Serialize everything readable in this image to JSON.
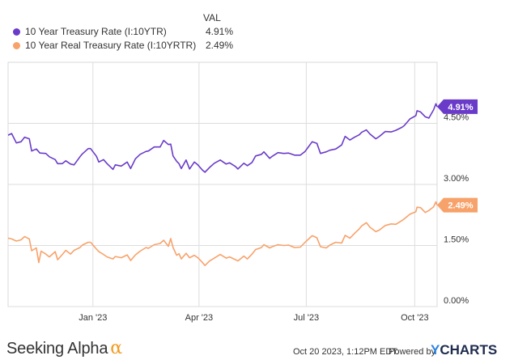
{
  "legend": {
    "header": "VAL",
    "items": [
      {
        "name": "10 Year Treasury Rate (I:10YTR)",
        "value": "4.91%",
        "color": "#6a3bc9"
      },
      {
        "name": "10 Year Real Treasury Rate (I:10YRTR)",
        "value": "2.49%",
        "color": "#f7a26a"
      }
    ]
  },
  "footer": {
    "brand": "Seeking Alpha",
    "brand_mark": "α",
    "date": "Oct 20 2023, 1:12PM EDT.",
    "powered": "Powered by",
    "ycharts_y": "Y",
    "ycharts_rest": "CHARTS"
  },
  "chart_data": {
    "type": "line",
    "x_start": "2022-10-21",
    "x_end": "2023-10-20",
    "xticks": [
      {
        "date": "2023-01-01",
        "label": "Jan '23"
      },
      {
        "date": "2023-04-01",
        "label": "Apr '23"
      },
      {
        "date": "2023-07-01",
        "label": "Jul '23"
      },
      {
        "date": "2023-10-01",
        "label": "Oct '23"
      }
    ],
    "ylim": [
      0,
      6
    ],
    "yticks": [
      {
        "value": 0,
        "label": "0.00%"
      },
      {
        "value": 1.5,
        "label": "1.50%"
      },
      {
        "value": 3.0,
        "label": "3.00%"
      },
      {
        "value": 4.5,
        "label": "4.50%"
      }
    ],
    "grid": true,
    "series": [
      {
        "name": "10 Year Treasury Rate (I:10YTR)",
        "color": "#6a3bc9",
        "end_label": "4.91%",
        "points": [
          [
            "2022-10-21",
            4.21
          ],
          [
            "2022-10-24",
            4.25
          ],
          [
            "2022-10-28",
            4.02
          ],
          [
            "2022-11-01",
            4.05
          ],
          [
            "2022-11-04",
            4.16
          ],
          [
            "2022-11-08",
            4.12
          ],
          [
            "2022-11-10",
            3.82
          ],
          [
            "2022-11-14",
            3.87
          ],
          [
            "2022-11-17",
            3.77
          ],
          [
            "2022-11-22",
            3.76
          ],
          [
            "2022-11-25",
            3.68
          ],
          [
            "2022-11-30",
            3.61
          ],
          [
            "2022-12-02",
            3.51
          ],
          [
            "2022-12-06",
            3.51
          ],
          [
            "2022-12-09",
            3.58
          ],
          [
            "2022-12-13",
            3.5
          ],
          [
            "2022-12-16",
            3.48
          ],
          [
            "2022-12-21",
            3.68
          ],
          [
            "2022-12-23",
            3.75
          ],
          [
            "2022-12-28",
            3.88
          ],
          [
            "2022-12-30",
            3.88
          ],
          [
            "2023-01-04",
            3.69
          ],
          [
            "2023-01-06",
            3.55
          ],
          [
            "2023-01-10",
            3.61
          ],
          [
            "2023-01-13",
            3.51
          ],
          [
            "2023-01-18",
            3.37
          ],
          [
            "2023-01-20",
            3.48
          ],
          [
            "2023-01-25",
            3.45
          ],
          [
            "2023-01-30",
            3.55
          ],
          [
            "2023-02-02",
            3.39
          ],
          [
            "2023-02-06",
            3.63
          ],
          [
            "2023-02-10",
            3.74
          ],
          [
            "2023-02-15",
            3.81
          ],
          [
            "2023-02-17",
            3.82
          ],
          [
            "2023-02-22",
            3.92
          ],
          [
            "2023-02-27",
            3.92
          ],
          [
            "2023-03-02",
            4.08
          ],
          [
            "2023-03-06",
            3.98
          ],
          [
            "2023-03-08",
            3.99
          ],
          [
            "2023-03-10",
            3.7
          ],
          [
            "2023-03-13",
            3.57
          ],
          [
            "2023-03-15",
            3.51
          ],
          [
            "2023-03-17",
            3.39
          ],
          [
            "2023-03-21",
            3.6
          ],
          [
            "2023-03-24",
            3.38
          ],
          [
            "2023-03-28",
            3.55
          ],
          [
            "2023-03-31",
            3.48
          ],
          [
            "2023-04-04",
            3.35
          ],
          [
            "2023-04-06",
            3.3
          ],
          [
            "2023-04-10",
            3.42
          ],
          [
            "2023-04-14",
            3.52
          ],
          [
            "2023-04-19",
            3.6
          ],
          [
            "2023-04-24",
            3.5
          ],
          [
            "2023-04-27",
            3.53
          ],
          [
            "2023-05-02",
            3.44
          ],
          [
            "2023-05-04",
            3.38
          ],
          [
            "2023-05-09",
            3.52
          ],
          [
            "2023-05-12",
            3.46
          ],
          [
            "2023-05-16",
            3.54
          ],
          [
            "2023-05-19",
            3.7
          ],
          [
            "2023-05-24",
            3.74
          ],
          [
            "2023-05-26",
            3.8
          ],
          [
            "2023-05-31",
            3.64
          ],
          [
            "2023-06-02",
            3.69
          ],
          [
            "2023-06-07",
            3.78
          ],
          [
            "2023-06-12",
            3.76
          ],
          [
            "2023-06-16",
            3.77
          ],
          [
            "2023-06-21",
            3.72
          ],
          [
            "2023-06-26",
            3.72
          ],
          [
            "2023-06-30",
            3.81
          ],
          [
            "2023-07-06",
            4.05
          ],
          [
            "2023-07-10",
            4.01
          ],
          [
            "2023-07-13",
            3.76
          ],
          [
            "2023-07-18",
            3.8
          ],
          [
            "2023-07-21",
            3.84
          ],
          [
            "2023-07-26",
            3.87
          ],
          [
            "2023-07-31",
            3.97
          ],
          [
            "2023-08-03",
            4.18
          ],
          [
            "2023-08-07",
            4.09
          ],
          [
            "2023-08-11",
            4.16
          ],
          [
            "2023-08-15",
            4.22
          ],
          [
            "2023-08-17",
            4.28
          ],
          [
            "2023-08-21",
            4.34
          ],
          [
            "2023-08-24",
            4.24
          ],
          [
            "2023-08-29",
            4.12
          ],
          [
            "2023-09-01",
            4.18
          ],
          [
            "2023-09-06",
            4.3
          ],
          [
            "2023-09-11",
            4.29
          ],
          [
            "2023-09-15",
            4.33
          ],
          [
            "2023-09-20",
            4.4
          ],
          [
            "2023-09-22",
            4.44
          ],
          [
            "2023-09-27",
            4.61
          ],
          [
            "2023-10-02",
            4.69
          ],
          [
            "2023-10-03",
            4.81
          ],
          [
            "2023-10-06",
            4.78
          ],
          [
            "2023-10-10",
            4.66
          ],
          [
            "2023-10-13",
            4.63
          ],
          [
            "2023-10-17",
            4.83
          ],
          [
            "2023-10-19",
            4.98
          ],
          [
            "2023-10-20",
            4.91
          ]
        ]
      },
      {
        "name": "10 Year Real Treasury Rate (I:10YRTR)",
        "color": "#f7a26a",
        "end_label": "2.49%",
        "points": [
          [
            "2022-10-21",
            1.68
          ],
          [
            "2022-10-24",
            1.66
          ],
          [
            "2022-10-28",
            1.61
          ],
          [
            "2022-11-01",
            1.64
          ],
          [
            "2022-11-04",
            1.72
          ],
          [
            "2022-11-08",
            1.66
          ],
          [
            "2022-11-10",
            1.37
          ],
          [
            "2022-11-14",
            1.44
          ],
          [
            "2022-11-16",
            1.08
          ],
          [
            "2022-11-18",
            1.36
          ],
          [
            "2022-11-22",
            1.29
          ],
          [
            "2022-11-25",
            1.22
          ],
          [
            "2022-11-30",
            1.35
          ],
          [
            "2022-12-02",
            1.15
          ],
          [
            "2022-12-06",
            1.28
          ],
          [
            "2022-12-09",
            1.38
          ],
          [
            "2022-12-13",
            1.29
          ],
          [
            "2022-12-16",
            1.38
          ],
          [
            "2022-12-21",
            1.45
          ],
          [
            "2022-12-23",
            1.51
          ],
          [
            "2022-12-28",
            1.58
          ],
          [
            "2022-12-30",
            1.58
          ],
          [
            "2023-01-04",
            1.41
          ],
          [
            "2023-01-06",
            1.35
          ],
          [
            "2023-01-10",
            1.28
          ],
          [
            "2023-01-13",
            1.22
          ],
          [
            "2023-01-18",
            1.17
          ],
          [
            "2023-01-20",
            1.23
          ],
          [
            "2023-01-25",
            1.2
          ],
          [
            "2023-01-30",
            1.27
          ],
          [
            "2023-02-02",
            1.13
          ],
          [
            "2023-02-06",
            1.27
          ],
          [
            "2023-02-10",
            1.36
          ],
          [
            "2023-02-15",
            1.45
          ],
          [
            "2023-02-17",
            1.43
          ],
          [
            "2023-02-22",
            1.52
          ],
          [
            "2023-02-27",
            1.55
          ],
          [
            "2023-03-02",
            1.63
          ],
          [
            "2023-03-06",
            1.48
          ],
          [
            "2023-03-08",
            1.67
          ],
          [
            "2023-03-10",
            1.45
          ],
          [
            "2023-03-13",
            1.26
          ],
          [
            "2023-03-15",
            1.3
          ],
          [
            "2023-03-17",
            1.17
          ],
          [
            "2023-03-21",
            1.31
          ],
          [
            "2023-03-24",
            1.2
          ],
          [
            "2023-03-28",
            1.26
          ],
          [
            "2023-03-31",
            1.2
          ],
          [
            "2023-04-04",
            1.08
          ],
          [
            "2023-04-06",
            1.01
          ],
          [
            "2023-04-10",
            1.12
          ],
          [
            "2023-04-14",
            1.19
          ],
          [
            "2023-04-19",
            1.28
          ],
          [
            "2023-04-24",
            1.19
          ],
          [
            "2023-04-27",
            1.22
          ],
          [
            "2023-05-02",
            1.15
          ],
          [
            "2023-05-04",
            1.12
          ],
          [
            "2023-05-09",
            1.24
          ],
          [
            "2023-05-12",
            1.17
          ],
          [
            "2023-05-16",
            1.29
          ],
          [
            "2023-05-19",
            1.4
          ],
          [
            "2023-05-24",
            1.45
          ],
          [
            "2023-05-26",
            1.52
          ],
          [
            "2023-05-31",
            1.44
          ],
          [
            "2023-06-02",
            1.47
          ],
          [
            "2023-06-07",
            1.52
          ],
          [
            "2023-06-12",
            1.5
          ],
          [
            "2023-06-16",
            1.51
          ],
          [
            "2023-06-21",
            1.45
          ],
          [
            "2023-06-26",
            1.46
          ],
          [
            "2023-06-30",
            1.58
          ],
          [
            "2023-07-06",
            1.74
          ],
          [
            "2023-07-10",
            1.69
          ],
          [
            "2023-07-13",
            1.47
          ],
          [
            "2023-07-18",
            1.44
          ],
          [
            "2023-07-21",
            1.51
          ],
          [
            "2023-07-26",
            1.58
          ],
          [
            "2023-07-31",
            1.56
          ],
          [
            "2023-08-03",
            1.75
          ],
          [
            "2023-08-07",
            1.68
          ],
          [
            "2023-08-11",
            1.8
          ],
          [
            "2023-08-15",
            1.91
          ],
          [
            "2023-08-17",
            1.98
          ],
          [
            "2023-08-21",
            2.06
          ],
          [
            "2023-08-24",
            1.95
          ],
          [
            "2023-08-29",
            1.84
          ],
          [
            "2023-09-01",
            1.88
          ],
          [
            "2023-09-06",
            1.99
          ],
          [
            "2023-09-11",
            2.03
          ],
          [
            "2023-09-15",
            2.02
          ],
          [
            "2023-09-20",
            2.11
          ],
          [
            "2023-09-22",
            2.15
          ],
          [
            "2023-09-27",
            2.27
          ],
          [
            "2023-10-02",
            2.33
          ],
          [
            "2023-10-03",
            2.44
          ],
          [
            "2023-10-06",
            2.43
          ],
          [
            "2023-10-10",
            2.31
          ],
          [
            "2023-10-13",
            2.36
          ],
          [
            "2023-10-17",
            2.45
          ],
          [
            "2023-10-19",
            2.57
          ],
          [
            "2023-10-20",
            2.49
          ]
        ]
      }
    ]
  }
}
